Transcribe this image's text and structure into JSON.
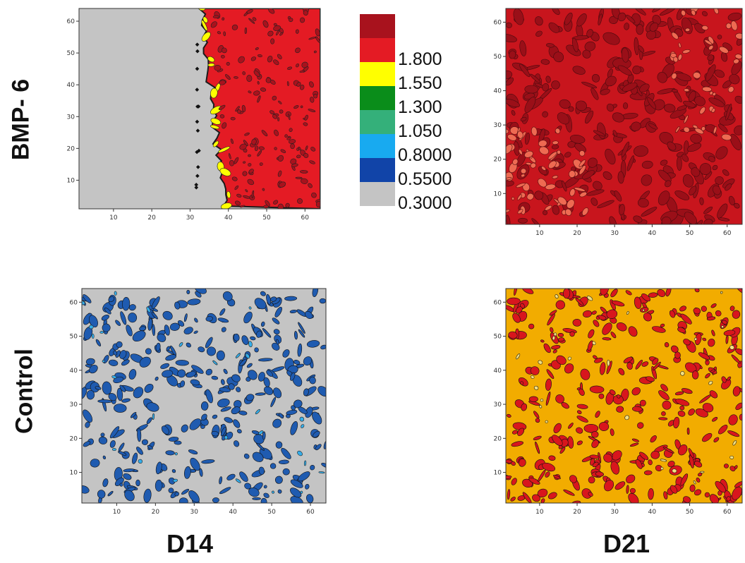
{
  "row_labels": {
    "top": "BMP- 6",
    "bottom": "Control"
  },
  "col_labels": {
    "left": "D14",
    "right": "D21"
  },
  "legend": {
    "levels": [
      {
        "label": "",
        "color": "#a8121d"
      },
      {
        "label": "1.800",
        "color": "#e41b24"
      },
      {
        "label": "1.550",
        "color": "#ffff00"
      },
      {
        "label": "1.300",
        "color": "#0a8d1a"
      },
      {
        "label": "1.050",
        "color": "#34b07a"
      },
      {
        "label": "0.8000",
        "color": "#18aaf0"
      },
      {
        "label": "0.5500",
        "color": "#1144a8"
      },
      {
        "label": "0.3000",
        "color": "#c4c4c4"
      }
    ]
  },
  "chart_data": [
    {
      "type": "heatmap",
      "panel": "BMP-6 D14",
      "xlim": [
        1,
        64
      ],
      "ylim": [
        1,
        64
      ],
      "xticks": [
        10,
        20,
        30,
        40,
        50,
        60
      ],
      "yticks": [
        10,
        20,
        30,
        40,
        50,
        60
      ],
      "pattern": "boundary",
      "base_color": "#c4c4c4",
      "fill_color": "#e41b24",
      "accent_color": "#ffff00",
      "dark_color": "#a8121d",
      "boundary_x": [
        33,
        40
      ]
    },
    {
      "type": "heatmap",
      "panel": "BMP-6 D21",
      "xlim": [
        1,
        64
      ],
      "ylim": [
        1,
        64
      ],
      "xticks": [
        10,
        20,
        30,
        40,
        50,
        60
      ],
      "yticks": [
        10,
        20,
        30,
        40,
        50,
        60
      ],
      "pattern": "mottled",
      "base_color": "#c8151d",
      "dark_color": "#9a0f18",
      "light_color": "#ee6a52"
    },
    {
      "type": "heatmap",
      "panel": "Control D14",
      "xlim": [
        1,
        64
      ],
      "ylim": [
        1,
        64
      ],
      "xticks": [
        10,
        20,
        30,
        40,
        50,
        60
      ],
      "yticks": [
        10,
        20,
        30,
        40,
        50,
        60
      ],
      "pattern": "speckle",
      "base_color": "#c4c4c4",
      "fill_color": "#1f5bb0",
      "accent_color": "#35aeea"
    },
    {
      "type": "heatmap",
      "panel": "Control D21",
      "xlim": [
        1,
        64
      ],
      "ylim": [
        1,
        64
      ],
      "xticks": [
        10,
        20,
        30,
        40,
        50,
        60
      ],
      "yticks": [
        10,
        20,
        30,
        40,
        50,
        60
      ],
      "pattern": "speckle",
      "base_color": "#f2ac00",
      "fill_color": "#d8161d",
      "accent_color": "#f4e080"
    }
  ]
}
